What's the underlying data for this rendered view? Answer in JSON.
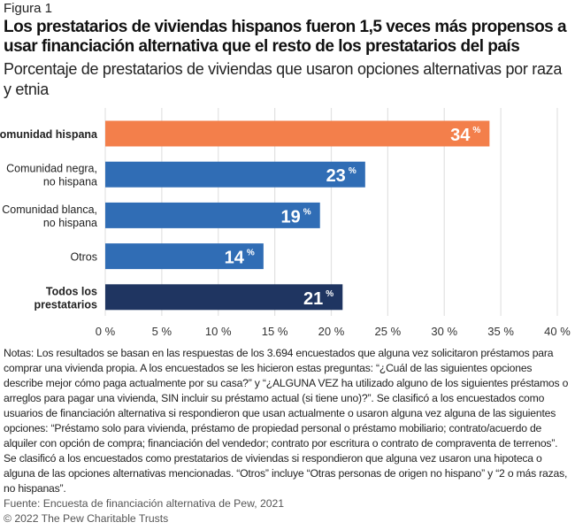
{
  "figure_label": "Figura 1",
  "title": "Los prestatarios de viviendas hispanos fueron 1,5 veces más propensos a usar financiación alternativa que el resto de los prestatarios del país",
  "subtitle": "Porcentaje de prestatarios de viviendas que usaron opciones alternativas por raza y etnia",
  "chart_data": {
    "type": "bar",
    "orientation": "horizontal",
    "categories": [
      [
        "Comunidad hispana"
      ],
      [
        "Comunidad negra,",
        "no hispana"
      ],
      [
        "Comunidad blanca,",
        "no hispana"
      ],
      [
        "Otros"
      ],
      [
        "Todos los",
        "prestatarios"
      ]
    ],
    "category_bold": [
      true,
      false,
      false,
      false,
      true
    ],
    "values": [
      34,
      23,
      19,
      14,
      21
    ],
    "value_suffix": "%",
    "bar_colors": [
      "#f37f4b",
      "#306db5",
      "#306db5",
      "#306db5",
      "#1f3561"
    ],
    "xlim": [
      0,
      40
    ],
    "xticks": [
      "0 %",
      "5 %",
      "10 %",
      "15 %",
      "20 %",
      "25 %",
      "30 %",
      "35 %",
      "40 %"
    ],
    "grid": true,
    "grid_color": "#e2e2e2"
  },
  "notes": "Notas: Los resultados se basan en las respuestas de los 3.694 encuestados que alguna vez solicitaron préstamos para comprar una vivienda propia. A los encuestados se les hicieron estas preguntas: “¿Cuál de las siguientes opciones describe mejor cómo paga actualmente por su casa?” y “¿ALGUNA VEZ ha utilizado alguno de los siguientes préstamos o arreglos para pagar una vivienda, SIN incluir su préstamo actual (si tiene uno)?”. Se clasificó a los encuestados como usuarios de financiación alternativa si respondieron que usan actualmente o usaron alguna vez alguna de las siguientes opciones: “Préstamo solo para vivienda, préstamo de propiedad personal o préstamo mobiliario; contrato/acuerdo de alquiler con opción de compra; financiación del vendedor; contrato por escritura o contrato de compraventa de terrenos”. Se clasificó a los encuestados como prestatarios de viviendas si respondieron que alguna vez usaron una hipoteca o alguna de las opciones alternativas mencionadas. “Otros” incluye “Otras personas de origen no hispano” y “2 o más razas, no hispanas”.",
  "source": "Fuente: Encuesta de financiación alternativa de Pew, 2021",
  "copyright": "© 2022 The Pew Charitable Trusts"
}
